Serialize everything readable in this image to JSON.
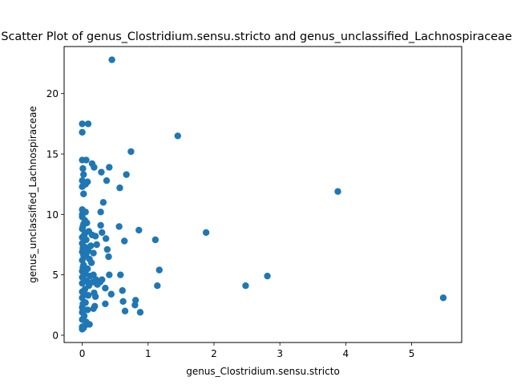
{
  "chart_data": {
    "type": "scatter",
    "title": "Scatter Plot of genus_Clostridium.sensu.stricto and genus_unclassified_Lachnospiraceae",
    "xlabel": "genus_Clostridium.sensu.stricto",
    "ylabel": "genus_unclassified_Lachnospiraceae",
    "xlim": [
      -0.275,
      5.76
    ],
    "ylim": [
      -0.6,
      23.9
    ],
    "xticks": [
      0,
      1,
      2,
      3,
      4,
      5
    ],
    "yticks": [
      0,
      5,
      10,
      15,
      20
    ],
    "grid": false,
    "marker_color": "#1f77b4",
    "points": [
      [
        0.45,
        22.8
      ],
      [
        0.0,
        17.5
      ],
      [
        0.09,
        17.5
      ],
      [
        0.0,
        16.8
      ],
      [
        1.45,
        16.5
      ],
      [
        0.74,
        15.2
      ],
      [
        0.0,
        14.5
      ],
      [
        0.06,
        14.5
      ],
      [
        0.15,
        14.2
      ],
      [
        0.18,
        13.9
      ],
      [
        0.41,
        13.9
      ],
      [
        0.01,
        13.8
      ],
      [
        0.29,
        13.5
      ],
      [
        0.67,
        13.3
      ],
      [
        0.02,
        13.3
      ],
      [
        0.0,
        12.8
      ],
      [
        0.37,
        12.8
      ],
      [
        0.08,
        12.7
      ],
      [
        0.05,
        12.5
      ],
      [
        0.57,
        12.2
      ],
      [
        0.0,
        12.3
      ],
      [
        3.88,
        11.9
      ],
      [
        0.02,
        11.7
      ],
      [
        0.32,
        11.0
      ],
      [
        0.0,
        10.4
      ],
      [
        0.05,
        10.2
      ],
      [
        0.28,
        10.2
      ],
      [
        0.0,
        9.8
      ],
      [
        0.04,
        9.5
      ],
      [
        0.07,
        9.3
      ],
      [
        0.28,
        9.1
      ],
      [
        0.56,
        9.0
      ],
      [
        0.01,
        9.0
      ],
      [
        0.0,
        8.8
      ],
      [
        0.86,
        8.7
      ],
      [
        1.88,
        8.5
      ],
      [
        0.1,
        8.6
      ],
      [
        0.05,
        8.5
      ],
      [
        0.3,
        8.5
      ],
      [
        0.15,
        8.3
      ],
      [
        0.2,
        8.2
      ],
      [
        0.0,
        8.1
      ],
      [
        0.36,
        8.0
      ],
      [
        0.06,
        7.9
      ],
      [
        1.11,
        7.9
      ],
      [
        0.64,
        7.8
      ],
      [
        0.0,
        7.6
      ],
      [
        0.22,
        7.5
      ],
      [
        0.13,
        7.4
      ],
      [
        0.04,
        7.3
      ],
      [
        0.38,
        7.1
      ],
      [
        0.09,
        7.0
      ],
      [
        0.0,
        6.9
      ],
      [
        0.17,
        6.8
      ],
      [
        0.06,
        6.7
      ],
      [
        0.4,
        6.5
      ],
      [
        0.03,
        6.5
      ],
      [
        0.11,
        6.3
      ],
      [
        0.0,
        6.2
      ],
      [
        0.14,
        6.0
      ],
      [
        0.02,
        5.8
      ],
      [
        0.08,
        5.5
      ],
      [
        1.17,
        5.4
      ],
      [
        0.0,
        5.3
      ],
      [
        0.05,
        5.1
      ],
      [
        0.17,
        5.0
      ],
      [
        0.41,
        5.0
      ],
      [
        0.58,
        5.0
      ],
      [
        0.12,
        4.9
      ],
      [
        0.0,
        4.8
      ],
      [
        2.81,
        4.9
      ],
      [
        0.21,
        4.6
      ],
      [
        0.3,
        4.6
      ],
      [
        0.07,
        4.5
      ],
      [
        0.16,
        4.4
      ],
      [
        0.27,
        4.4
      ],
      [
        0.0,
        4.3
      ],
      [
        0.23,
        4.2
      ],
      [
        0.1,
        4.1
      ],
      [
        2.48,
        4.1
      ],
      [
        1.14,
        4.1
      ],
      [
        0.35,
        3.9
      ],
      [
        0.04,
        3.8
      ],
      [
        0.61,
        3.7
      ],
      [
        0.0,
        3.6
      ],
      [
        0.18,
        3.5
      ],
      [
        0.44,
        3.4
      ],
      [
        0.09,
        3.3
      ],
      [
        0.2,
        3.2
      ],
      [
        0.0,
        3.1
      ],
      [
        5.48,
        3.1
      ],
      [
        0.81,
        2.9
      ],
      [
        0.62,
        2.8
      ],
      [
        0.05,
        2.7
      ],
      [
        0.35,
        2.6
      ],
      [
        0.8,
        2.5
      ],
      [
        0.19,
        2.4
      ],
      [
        0.0,
        2.3
      ],
      [
        0.17,
        2.2
      ],
      [
        0.08,
        2.1
      ],
      [
        0.65,
        2.0
      ],
      [
        0.0,
        1.9
      ],
      [
        0.88,
        1.9
      ],
      [
        0.03,
        1.6
      ],
      [
        0.0,
        1.3
      ],
      [
        0.06,
        1.1
      ],
      [
        0.11,
        0.9
      ],
      [
        0.0,
        0.7
      ],
      [
        0.02,
        0.6
      ],
      [
        0.0,
        0.5
      ],
      [
        0.04,
        0.8
      ],
      [
        0.01,
        2.6
      ],
      [
        0.02,
        3.5
      ],
      [
        0.03,
        4.6
      ],
      [
        0.01,
        5.6
      ],
      [
        0.02,
        6.6
      ],
      [
        0.01,
        7.2
      ],
      [
        0.03,
        8.3
      ],
      [
        0.02,
        9.2
      ],
      [
        0.0,
        10.0
      ]
    ]
  }
}
